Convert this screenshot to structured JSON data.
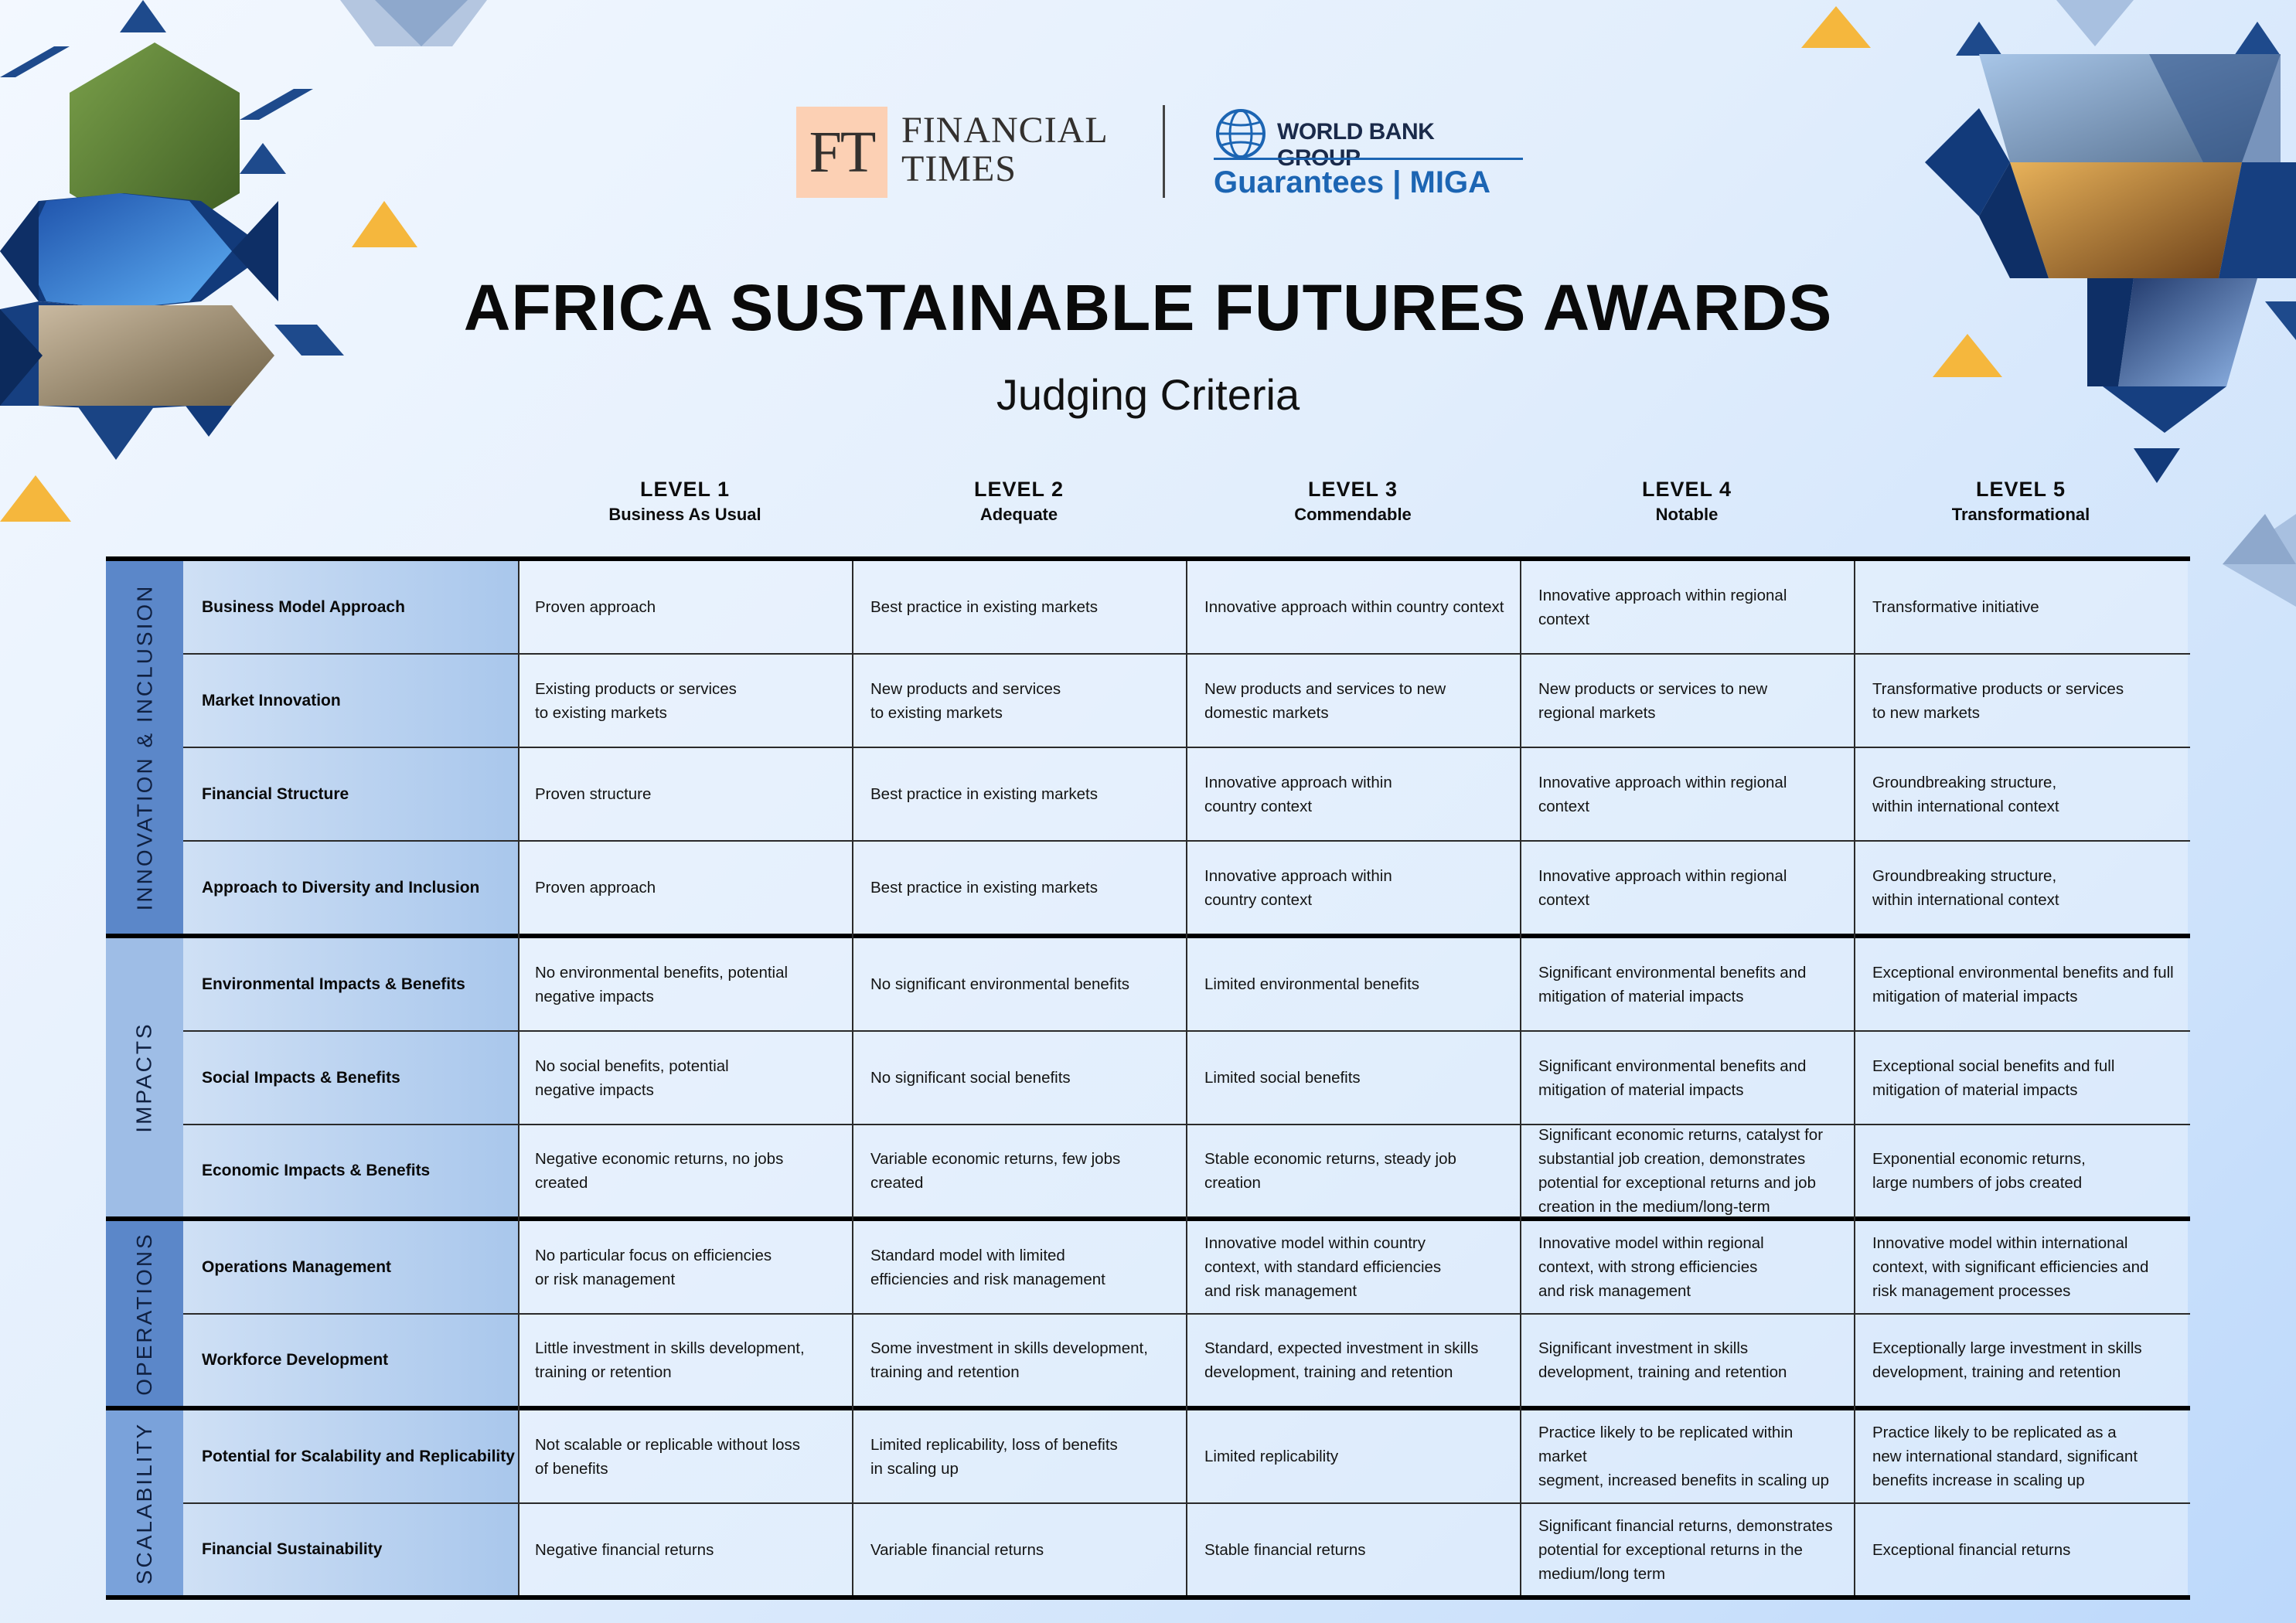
{
  "logos": {
    "ft_mark": "FT",
    "ft_name_line1": "FINANCIAL",
    "ft_name_line2": "TIMES",
    "wb_name": "WORLD BANK GROUP",
    "wb_sub": "Guarantees | MIGA",
    "wb_color": "#1c65b3"
  },
  "title": "AFRICA SUSTAINABLE FUTURES AWARDS",
  "subtitle": "Judging Criteria",
  "levels": [
    {
      "level": "LEVEL 1",
      "name": "Business As Usual"
    },
    {
      "level": "LEVEL 2",
      "name": "Adequate"
    },
    {
      "level": "LEVEL 3",
      "name": "Commendable"
    },
    {
      "level": "LEVEL 4",
      "name": "Notable"
    },
    {
      "level": "LEVEL 5",
      "name": "Transformational"
    }
  ],
  "groups": [
    {
      "label": "INNOVATION & INCLUSION",
      "color": "#5b87c9"
    },
    {
      "label": "IMPACTS",
      "color": "#9ebde6"
    },
    {
      "label": "OPERATIONS",
      "color": "#5b87c9"
    },
    {
      "label": "SCALABILITY",
      "color": "#7aa2da"
    }
  ],
  "rows": [
    {
      "criterion": "Business Model Approach",
      "cells": [
        "Proven approach",
        "Best practice in existing markets",
        "Innovative approach within country context",
        "Innovative approach within regional context",
        "Transformative initiative"
      ]
    },
    {
      "criterion": "Market Innovation",
      "cells": [
        "Existing products or services\nto existing markets",
        "New products and services\nto existing markets",
        "New products and services to new\ndomestic markets",
        "New products or services to new\nregional markets",
        "Transformative products or services\nto new markets"
      ]
    },
    {
      "criterion": "Financial Structure",
      "cells": [
        "Proven structure",
        "Best practice in existing markets",
        "Innovative approach within\ncountry context",
        "Innovative approach within regional context",
        "Groundbreaking structure,\nwithin international context"
      ]
    },
    {
      "criterion": "Approach to Diversity and Inclusion",
      "cells": [
        "Proven approach",
        "Best practice in existing markets",
        "Innovative approach within\ncountry context",
        "Innovative approach within regional context",
        "Groundbreaking structure,\nwithin international context"
      ]
    },
    {
      "criterion": "Environmental Impacts & Benefits",
      "cells": [
        "No environmental benefits, potential\nnegative impacts",
        "No significant environmental benefits",
        "Limited environmental benefits",
        "Significant environmental benefits and\nmitigation of material impacts",
        "Exceptional environmental benefits and full\nmitigation of material impacts"
      ]
    },
    {
      "criterion": "Social Impacts & Benefits",
      "cells": [
        "No social benefits, potential\nnegative impacts",
        "No significant social benefits",
        "Limited social benefits",
        "Significant environmental benefits and\nmitigation of material impacts",
        "Exceptional social benefits and full\nmitigation of material impacts"
      ]
    },
    {
      "criterion": "Economic Impacts & Benefits",
      "cells": [
        "Negative economic returns, no jobs created",
        "Variable economic returns, few jobs created",
        "Stable economic returns, steady job creation",
        "Significant economic returns, catalyst for\nsubstantial job creation, demonstrates\npotential for exceptional returns and job\ncreation in the medium/long-term",
        "Exponential economic returns,\nlarge numbers of jobs created"
      ]
    },
    {
      "criterion": "Operations Management",
      "cells": [
        "No particular focus on efficiencies\nor risk management",
        "Standard model with limited\nefficiencies and risk management",
        "Innovative model within country\ncontext, with standard efficiencies\nand risk management",
        "Innovative model within regional\ncontext, with strong efficiencies\nand risk management",
        "Innovative model within international\ncontext, with significant efficiencies and\nrisk management processes"
      ]
    },
    {
      "criterion": "Workforce Development",
      "cells": [
        "Little investment in skills development,\ntraining or retention",
        "Some investment in skills development,\ntraining and retention",
        "Standard, expected investment in skills\ndevelopment, training and retention",
        "Significant investment in skills\ndevelopment, training and retention",
        "Exceptionally large investment in skills\ndevelopment, training and retention"
      ]
    },
    {
      "criterion": "Potential for Scalability and Replicability",
      "cells": [
        "Not scalable or replicable without loss\nof benefits",
        "Limited replicability, loss of benefits\nin scaling up",
        "Limited replicability",
        "Practice likely to be replicated within market\nsegment, increased benefits in scaling up",
        "Practice likely to be replicated as a\nnew international standard, significant\nbenefits increase in scaling up"
      ]
    },
    {
      "criterion": "Financial Sustainability",
      "cells": [
        "Negative financial returns",
        "Variable financial returns",
        "Stable financial returns",
        "Significant financial returns, demonstrates\npotential for exceptional returns in the\nmedium/long term",
        "Exceptional financial returns"
      ]
    }
  ]
}
